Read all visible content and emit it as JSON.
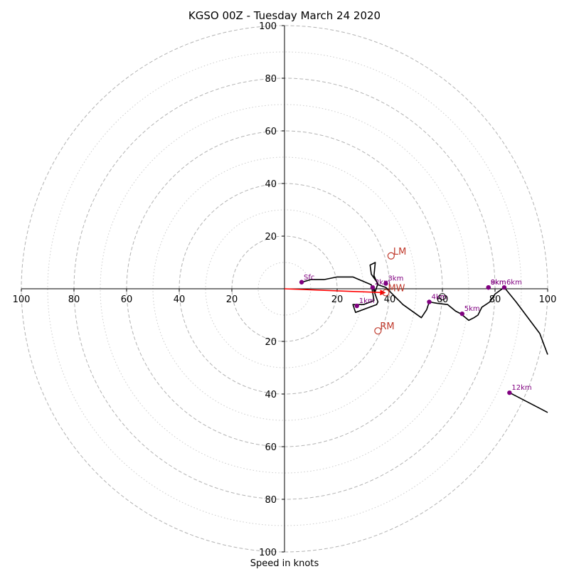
{
  "chart_data": {
    "type": "scatter",
    "subtype": "hodograph",
    "title": "KGSO 00Z - Tuesday March 24 2020",
    "xlabel": "Speed in knots",
    "units": "knots",
    "ring_values_major": [
      20,
      40,
      60,
      80,
      100
    ],
    "ring_values_minor": [
      10,
      30,
      50,
      70,
      90
    ],
    "axis_tick_values": [
      20,
      40,
      60,
      80,
      100
    ],
    "axis_tick_labels": [
      "20",
      "40",
      "60",
      "80",
      "100"
    ],
    "xlim": [
      -100,
      100
    ],
    "ylim": [
      -100,
      100
    ],
    "grid": true,
    "colors": {
      "trace": "#000000",
      "height_marker": "#800080",
      "storm_motion": "#c0392b",
      "mean_wind_arrow": "#ff0000",
      "grid": "#b3b3b3"
    },
    "hodograph_trace": [
      [
        6.5,
        2.5
      ],
      [
        10,
        3.5
      ],
      [
        15,
        3.5
      ],
      [
        20,
        4.5
      ],
      [
        26,
        4.5
      ],
      [
        33,
        1.5
      ],
      [
        34,
        -4.5
      ],
      [
        30,
        -6
      ],
      [
        26,
        -6
      ],
      [
        27,
        -9
      ],
      [
        35,
        -6
      ],
      [
        35.5,
        -5
      ],
      [
        33.5,
        0.5
      ],
      [
        34.5,
        -1
      ],
      [
        35.5,
        2
      ],
      [
        33,
        5.5
      ],
      [
        32.5,
        9
      ],
      [
        34.5,
        10
      ],
      [
        34,
        5
      ],
      [
        35.5,
        1.5
      ],
      [
        38.5,
        0.5
      ],
      [
        41,
        -2
      ],
      [
        45,
        -6
      ],
      [
        52,
        -11
      ],
      [
        54,
        -8
      ],
      [
        55,
        -5
      ],
      [
        58,
        -5.5
      ],
      [
        62,
        -6
      ],
      [
        65,
        -8.5
      ],
      [
        67,
        -9.5
      ],
      [
        70,
        -12
      ],
      [
        72,
        -11
      ],
      [
        73.5,
        -10
      ],
      [
        75,
        -7
      ],
      [
        78,
        -5
      ],
      [
        80,
        -2
      ],
      [
        83.5,
        0.5
      ],
      [
        88,
        -5
      ],
      [
        97,
        -17
      ],
      [
        100,
        -25
      ]
    ],
    "hodograph_trace_upper": [
      [
        85.5,
        -39.5
      ],
      [
        100,
        -47
      ]
    ],
    "height_markers": [
      {
        "label": "Sfc",
        "u": 6.5,
        "v": 2.5
      },
      {
        "label": "1km",
        "u": 27.5,
        "v": -6.5
      },
      {
        "label": "2km",
        "u": 33.5,
        "v": 0.5
      },
      {
        "label": "3km",
        "u": 38.5,
        "v": 2
      },
      {
        "label": "4km",
        "u": 55,
        "v": -5
      },
      {
        "label": "5km",
        "u": 67.5,
        "v": -9.5
      },
      {
        "label": "6km",
        "u": 83.5,
        "v": 0.5
      },
      {
        "label": "8km",
        "u": 77.5,
        "v": 0.5
      },
      {
        "label": "9km",
        "u": 77.5,
        "v": 0.5
      },
      {
        "label": "12km",
        "u": 85.5,
        "v": -39.5
      }
    ],
    "storm_motion": [
      {
        "label": "LM",
        "u": 40.5,
        "v": 12.5
      },
      {
        "label": "MW",
        "u": 38.5,
        "v": -1.5
      },
      {
        "label": "RM",
        "u": 35.5,
        "v": -16
      }
    ],
    "bunkers_deviant": [
      {
        "label": "",
        "u": 60,
        "v": -3
      }
    ],
    "mean_wind_vector": {
      "from": [
        0,
        0
      ],
      "to": [
        38.5,
        -1.5
      ]
    }
  }
}
